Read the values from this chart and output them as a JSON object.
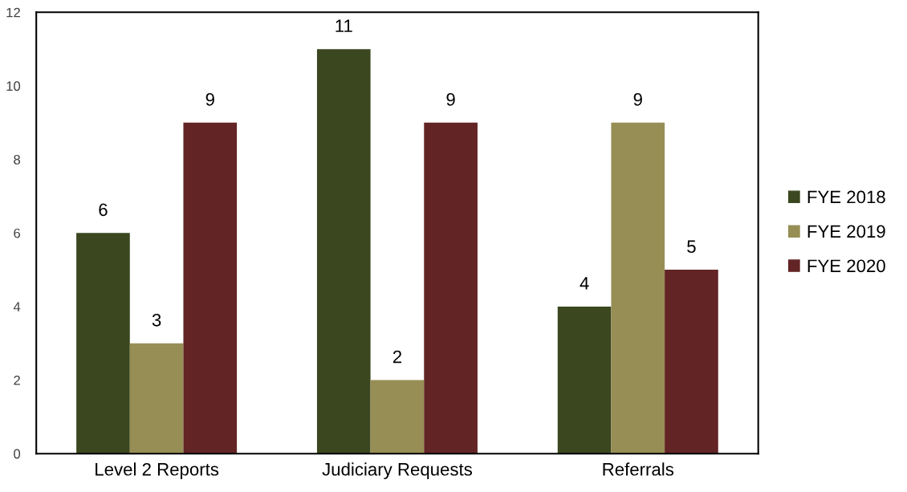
{
  "chart_data": {
    "type": "bar",
    "categories": [
      "Level 2 Reports",
      "Judiciary Requests",
      "Referrals"
    ],
    "series": [
      {
        "name": "FYE 2018",
        "color": "#3a471f",
        "values": [
          6,
          11,
          4
        ]
      },
      {
        "name": "FYE 2019",
        "color": "#978e55",
        "values": [
          3,
          2,
          9
        ]
      },
      {
        "name": "FYE 2020",
        "color": "#632426",
        "values": [
          9,
          9,
          5
        ]
      }
    ],
    "ylim": [
      0,
      12
    ],
    "yticks": [
      0,
      2,
      4,
      6,
      8,
      10,
      12
    ],
    "grid": false,
    "legend": "right",
    "data_labels": true
  }
}
